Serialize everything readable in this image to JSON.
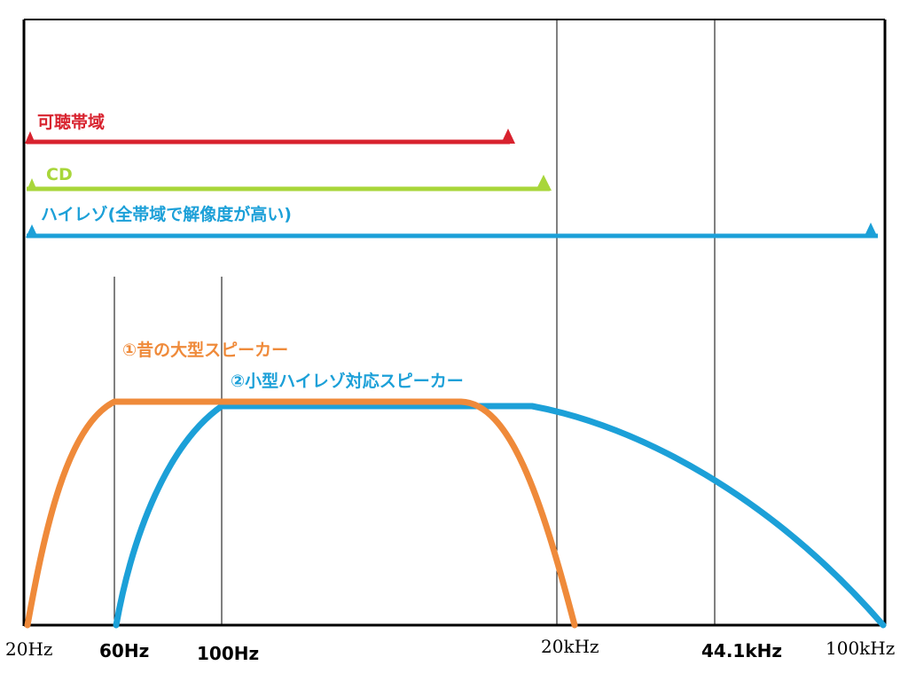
{
  "colors": {
    "audible": "#d8222e",
    "cd": "#a8d63a",
    "hires": "#1ca0d8",
    "old_speaker": "#ef8a3a",
    "small_speaker": "#1ca0d8"
  },
  "ranges": [
    {
      "key": "audible",
      "label": "可聴帯域",
      "from": "20Hz",
      "to": "20kHz"
    },
    {
      "key": "cd",
      "label": "CD",
      "from": "20Hz",
      "to": "22.05kHz"
    },
    {
      "key": "hires",
      "label": "ハイレゾ(全帯域で解像度が高い)",
      "from": "20Hz",
      "to": "100kHz"
    }
  ],
  "curves": [
    {
      "key": "old_speaker",
      "label": "①昔の大型スピーカー"
    },
    {
      "key": "small_speaker",
      "label": "②小型ハイレゾ対応スピーカー"
    }
  ],
  "ticks": [
    {
      "label": "20Hz",
      "bold": false
    },
    {
      "label": "60Hz",
      "bold": true
    },
    {
      "label": "100Hz",
      "bold": true
    },
    {
      "label": "20kHz",
      "bold": false
    },
    {
      "label": "44.1kHz",
      "bold": true
    },
    {
      "label": "100kHz",
      "bold": false
    }
  ]
}
